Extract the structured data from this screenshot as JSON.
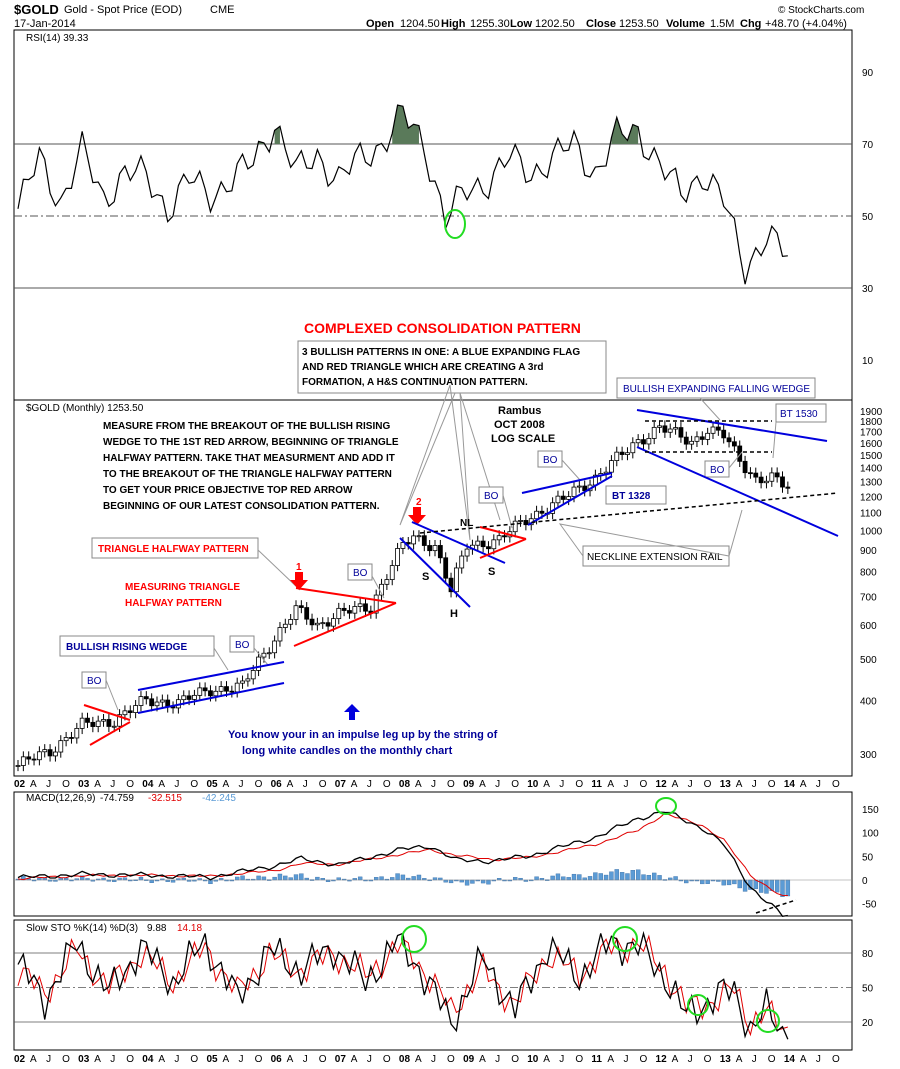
{
  "header": {
    "symbol": "$GOLD",
    "name": "Gold - Spot Price (EOD)",
    "exchange": "CME",
    "date": "17-Jan-2014",
    "open_label": "Open",
    "open": "1204.50",
    "high_label": "High",
    "high": "1255.30",
    "low_label": "Low",
    "low": "1202.50",
    "close_label": "Close",
    "close": "1253.50",
    "volume_label": "Volume",
    "volume": "1.5M",
    "chg_label": "Chg",
    "chg": "+48.70 (+4.04%)",
    "watermark": "© StockCharts.com"
  },
  "chart_data": [
    {
      "type": "line",
      "panel": "RSI",
      "legend": "RSI(14) 39.33",
      "ylim": [
        0,
        100
      ],
      "yticks": [
        10,
        30,
        50,
        70,
        90
      ],
      "reference_lines": [
        30,
        50,
        70
      ],
      "shade_above": 70,
      "x": [
        "2002-01",
        "2002-05",
        "2002-09",
        "2003-01",
        "2003-05",
        "2003-09",
        "2004-01",
        "2004-05",
        "2004-09",
        "2005-01",
        "2005-05",
        "2005-09",
        "2006-01",
        "2006-05",
        "2006-09",
        "2007-01",
        "2007-05",
        "2007-09",
        "2008-01",
        "2008-05",
        "2008-09",
        "2009-01",
        "2009-05",
        "2009-09",
        "2010-01",
        "2010-05",
        "2010-09",
        "2011-01",
        "2011-05",
        "2011-09",
        "2012-01",
        "2012-05",
        "2012-09",
        "2013-01",
        "2013-05",
        "2013-09",
        "2014-01"
      ],
      "values": [
        52,
        66,
        54,
        68,
        55,
        62,
        61,
        52,
        60,
        56,
        60,
        65,
        76,
        62,
        67,
        60,
        66,
        70,
        78,
        70,
        49,
        57,
        60,
        66,
        62,
        66,
        70,
        62,
        72,
        74,
        64,
        56,
        62,
        54,
        36,
        44,
        39
      ]
    },
    {
      "type": "candlestick",
      "panel": "price",
      "legend": "$GOLD (Monthly) 1253.50",
      "scale": "log",
      "ylim": [
        270,
        1950
      ],
      "yticks": [
        300,
        400,
        500,
        600,
        700,
        800,
        900,
        1000,
        1100,
        1200,
        1300,
        1400,
        1500,
        1600,
        1700,
        1800,
        1900
      ],
      "x": [
        "2002-01",
        "2002-07",
        "2003-01",
        "2003-07",
        "2004-01",
        "2004-07",
        "2005-01",
        "2005-07",
        "2006-01",
        "2006-05",
        "2006-09",
        "2007-01",
        "2007-07",
        "2008-01",
        "2008-03",
        "2008-07",
        "2008-10",
        "2009-01",
        "2009-07",
        "2010-01",
        "2010-07",
        "2011-01",
        "2011-06",
        "2011-09",
        "2012-01",
        "2012-07",
        "2012-10",
        "2013-01",
        "2013-04",
        "2013-07",
        "2013-10",
        "2014-01"
      ],
      "close": [
        282,
        305,
        350,
        360,
        400,
        395,
        425,
        430,
        560,
        650,
        600,
        640,
        660,
        920,
        960,
        920,
        720,
        920,
        950,
        1080,
        1180,
        1330,
        1500,
        1620,
        1740,
        1610,
        1720,
        1660,
        1460,
        1320,
        1320,
        1253
      ],
      "annotation_last": {
        "open": 1204.5,
        "high": 1255.3,
        "low": 1202.5,
        "close": 1253.5
      }
    },
    {
      "type": "line",
      "panel": "MACD",
      "legend": "MACD(12,26,9) -74.759, -32.515, -42.245",
      "legend_values": [
        "-74.759",
        "-32.515",
        "-42.245"
      ],
      "ylim": [
        -65,
        180
      ],
      "yticks": [
        -50,
        0,
        50,
        100,
        150
      ],
      "x": [
        "2002-01",
        "2003-01",
        "2004-01",
        "2005-01",
        "2006-01",
        "2006-06",
        "2007-01",
        "2008-01",
        "2008-06",
        "2008-11",
        "2009-06",
        "2010-01",
        "2011-01",
        "2011-09",
        "2012-02",
        "2012-09",
        "2013-01",
        "2013-06",
        "2013-12"
      ],
      "values": [
        5,
        12,
        10,
        6,
        30,
        45,
        32,
        65,
        72,
        42,
        40,
        52,
        90,
        130,
        145,
        110,
        75,
        -15,
        -75
      ],
      "signal": [
        3,
        9,
        10,
        8,
        20,
        35,
        33,
        55,
        64,
        52,
        43,
        48,
        75,
        105,
        140,
        115,
        85,
        10,
        -35
      ]
    },
    {
      "type": "line",
      "panel": "Slow STO",
      "legend": "Slow STO %K(14) %D(3) 9.88, 14.18",
      "legend_values": [
        "9.88",
        "14.18"
      ],
      "ylim": [
        0,
        100
      ],
      "yticks": [
        20,
        50,
        80
      ],
      "x": [
        "2002-01",
        "2002-06",
        "2002-12",
        "2003-06",
        "2003-12",
        "2004-06",
        "2004-12",
        "2005-06",
        "2005-12",
        "2006-06",
        "2006-12",
        "2007-06",
        "2007-12",
        "2008-03",
        "2008-10",
        "2009-04",
        "2009-10",
        "2010-04",
        "2010-10",
        "2011-04",
        "2011-09",
        "2012-02",
        "2012-06",
        "2012-12",
        "2013-03",
        "2013-06",
        "2013-09",
        "2013-12"
      ],
      "values": [
        70,
        40,
        88,
        45,
        85,
        55,
        90,
        40,
        82,
        65,
        85,
        55,
        90,
        75,
        20,
        75,
        30,
        85,
        60,
        90,
        85,
        60,
        25,
        45,
        45,
        15,
        30,
        10
      ],
      "signal": [
        65,
        45,
        82,
        50,
        80,
        55,
        85,
        45,
        78,
        65,
        80,
        60,
        85,
        78,
        30,
        65,
        35,
        78,
        62,
        85,
        88,
        65,
        32,
        40,
        48,
        20,
        28,
        14
      ]
    }
  ],
  "x_axis": {
    "labels": [
      "02",
      "A",
      "J",
      "O",
      "03",
      "A",
      "J",
      "O",
      "04",
      "A",
      "J",
      "O",
      "05",
      "A",
      "J",
      "O",
      "06",
      "A",
      "J",
      "O",
      "07",
      "A",
      "J",
      "O",
      "08",
      "A",
      "J",
      "O",
      "09",
      "A",
      "J",
      "O",
      "10",
      "A",
      "J",
      "O",
      "11",
      "A",
      "J",
      "O",
      "12",
      "A",
      "J",
      "O",
      "13",
      "A",
      "J",
      "O",
      "14",
      "A",
      "J",
      "O"
    ]
  },
  "annotations": {
    "main_title": "COMPLEXED CONSOLIDATION PATTERN",
    "box_text": [
      "3 BULLISH PATTERNS IN ONE:  A BLUE EXPANDING FLAG",
      "AND RED TRIANGLE WHICH ARE CREATING A 3rd",
      "FORMATION, A H&S CONTINUATION PATTERN."
    ],
    "measure_text": [
      "MEASURE FROM THE BREAKOUT OF THE BULLISH RISING",
      "WEDGE TO THE 1ST RED ARROW, BEGINNING OF TRIANGLE",
      "HALFWAY PATTERN. TAKE THAT MEASURMENT AND ADD IT",
      "TO THE BREAKOUT OF THE TRIANGLE HALFWAY PATTERN",
      "TO GET YOUR PRICE OBJECTIVE TOP RED ARROW",
      "BEGINNING OF OUR LATEST CONSOLIDATION PATTERN."
    ],
    "rambus": [
      "Rambus",
      "OCT 2008",
      "LOG SCALE"
    ],
    "triangle_halfway": "TRIANGLE HALFWAY PATTERN",
    "measuring_triangle": [
      "MEASURING TRIANGLE",
      "HALFWAY PATTERN"
    ],
    "bullish_rising_wedge": "BULLISH RISING WEDGE",
    "bullish_expanding": "BULLISH EXPANDING FALLING WEDGE",
    "neckline": "NECKLINE EXTENSION RAIL",
    "impulse_text": [
      "You know your in an impulse leg up by the string of",
      "long white candles on the monthly chart"
    ],
    "bo": "BO",
    "bt1328": "BT 1328",
    "bt1530": "BT 1530",
    "arrow1": "1",
    "arrow2": "2",
    "nl": "NL",
    "s": "S",
    "h": "H"
  },
  "colors": {
    "rsi_fill": "#5a7a5a",
    "ma_red": "#e00000",
    "blue_line": "#0000dd",
    "hist": "#5b9bd5",
    "green_circle": "#22dd22",
    "red_text": "#ff0000",
    "navy_text": "#000099"
  }
}
